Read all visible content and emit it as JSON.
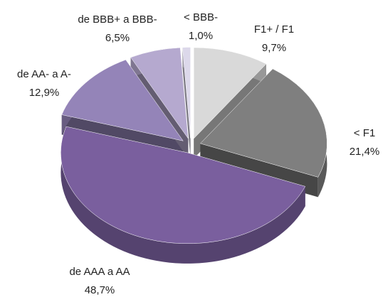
{
  "chart_data": {
    "type": "pie",
    "categories": [
      "F1+ / F1",
      "< F1",
      "de AAA a AA",
      "de AA- a A-",
      "de BBB+ a BBB-",
      "< BBB-"
    ],
    "values": [
      9.7,
      21.4,
      48.7,
      12.9,
      6.5,
      1.0
    ],
    "value_labels": [
      "9,7%",
      "21,4%",
      "48,7%",
      "12,9%",
      "6,5%",
      "1,0%"
    ],
    "colors": [
      "#d9d9d9",
      "#7f7f7f",
      "#7a5f9e",
      "#9484b8",
      "#b5a9cf",
      "#dcd8ea"
    ]
  }
}
